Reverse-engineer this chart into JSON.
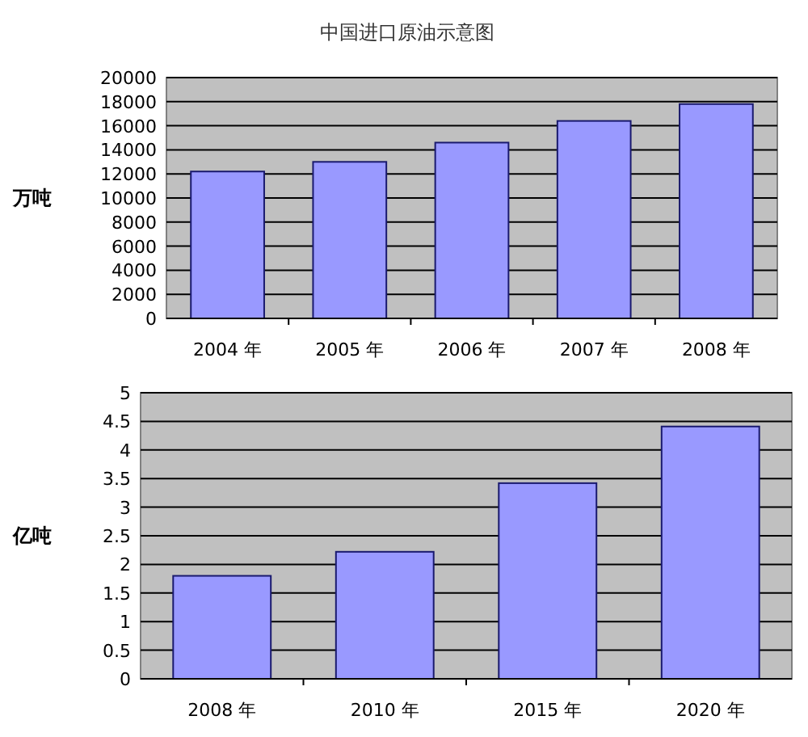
{
  "chart_data": [
    {
      "type": "bar",
      "title": "中国进口原油示意图",
      "ylabel": "万吨",
      "categories": [
        "2004 年",
        "2005 年",
        "2006 年",
        "2007 年",
        "2008 年"
      ],
      "values": [
        12200,
        13000,
        14600,
        16400,
        17800
      ],
      "color": "#9999ff",
      "ylim": [
        0,
        20000
      ],
      "yticks": [
        0,
        2000,
        4000,
        6000,
        8000,
        10000,
        12000,
        14000,
        16000,
        18000,
        20000
      ],
      "grid": "y"
    },
    {
      "type": "bar",
      "ylabel": "亿吨",
      "categories": [
        "2008 年",
        "2010 年",
        "2015 年",
        "2020 年"
      ],
      "values": [
        1.8,
        2.22,
        3.42,
        4.41
      ],
      "color": "#9999ff",
      "ylim": [
        0,
        5
      ],
      "yticks": [
        0,
        0.5,
        1,
        1.5,
        2,
        2.5,
        3,
        3.5,
        4,
        4.5,
        5
      ],
      "grid": "y"
    }
  ]
}
